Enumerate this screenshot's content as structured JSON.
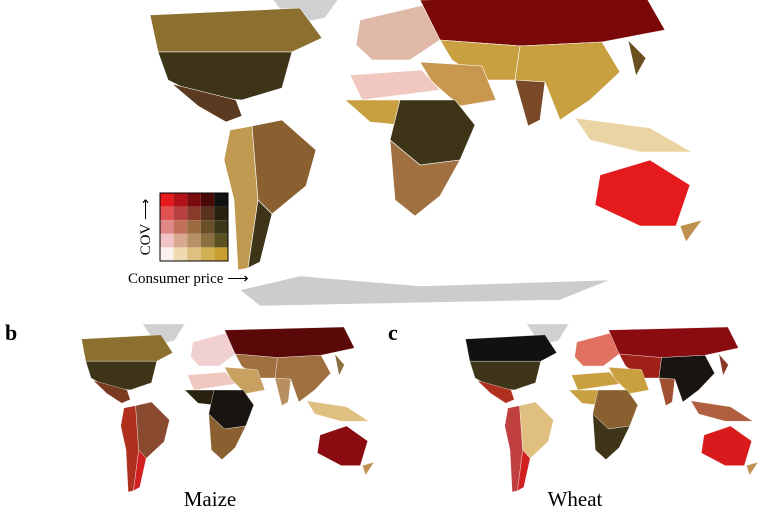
{
  "legend": {
    "y_label": "COV ⟶",
    "x_label": "Consumer price ⟶",
    "colors": [
      [
        "#e41a1c",
        "#b3121a",
        "#7a0c10",
        "#4a0a0a",
        "#111111"
      ],
      [
        "#e05252",
        "#b84040",
        "#8a3a28",
        "#5a3220",
        "#2a2010"
      ],
      [
        "#e08888",
        "#c07058",
        "#9a6a40",
        "#6a5028",
        "#3a3818"
      ],
      [
        "#f0c4c4",
        "#d8a890",
        "#b89068",
        "#8a7040",
        "#5a5020"
      ],
      [
        "#fbf0ee",
        "#f0d8b0",
        "#e0c080",
        "#d0b050",
        "#c8a030"
      ]
    ]
  },
  "panels": [
    {
      "letter": "b",
      "title": "Maize"
    },
    {
      "letter": "c",
      "title": "Wheat"
    }
  ]
}
